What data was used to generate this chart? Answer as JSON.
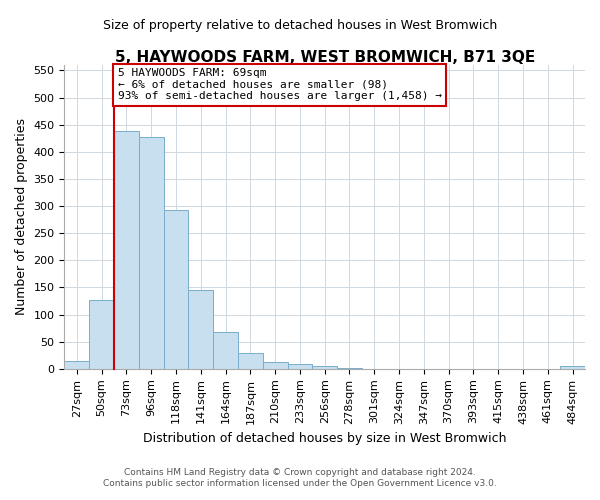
{
  "title": "5, HAYWOODS FARM, WEST BROMWICH, B71 3QE",
  "subtitle": "Size of property relative to detached houses in West Bromwich",
  "xlabel": "Distribution of detached houses by size in West Bromwich",
  "ylabel": "Number of detached properties",
  "footer_line1": "Contains HM Land Registry data © Crown copyright and database right 2024.",
  "footer_line2": "Contains public sector information licensed under the Open Government Licence v3.0.",
  "bin_labels": [
    "27sqm",
    "50sqm",
    "73sqm",
    "96sqm",
    "118sqm",
    "141sqm",
    "164sqm",
    "187sqm",
    "210sqm",
    "233sqm",
    "256sqm",
    "278sqm",
    "301sqm",
    "324sqm",
    "347sqm",
    "370sqm",
    "393sqm",
    "415sqm",
    "438sqm",
    "461sqm",
    "484sqm"
  ],
  "bar_values": [
    15,
    127,
    438,
    427,
    292,
    146,
    68,
    30,
    13,
    8,
    5,
    1,
    0,
    0,
    0,
    0,
    0,
    0,
    0,
    0,
    5
  ],
  "bar_color": "#c8dff0",
  "bar_edge_color": "#7aadcc",
  "marker_line_color": "#cc0000",
  "annotation_line1": "5 HAYWOODS FARM: 69sqm",
  "annotation_line2": "← 6% of detached houses are smaller (98)",
  "annotation_line3": "93% of semi-detached houses are larger (1,458) →",
  "annotation_box_edge": "#cc0000",
  "ylim_max": 560,
  "ytick_step": 50,
  "marker_bin_index": 2,
  "title_fontsize": 11,
  "subtitle_fontsize": 9,
  "axis_label_fontsize": 9,
  "tick_fontsize": 8,
  "annotation_fontsize": 8,
  "footer_fontsize": 6.5
}
